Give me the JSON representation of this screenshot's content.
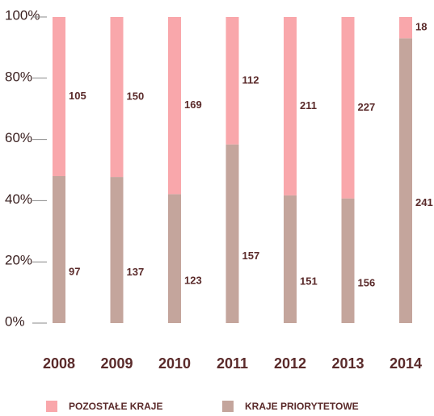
{
  "chart_data": {
    "type": "bar",
    "stacked": "percent",
    "categories": [
      "2008",
      "2009",
      "2010",
      "2011",
      "2012",
      "2013",
      "2014"
    ],
    "series": [
      {
        "name": "POZOSTAŁE KRAJE",
        "color": "#f9a7ab",
        "values": [
          105,
          150,
          169,
          112,
          211,
          227,
          18
        ]
      },
      {
        "name": "KRAJE PRIORYTETOWE",
        "color": "#c4a59c",
        "values": [
          97,
          137,
          123,
          157,
          151,
          156,
          241
        ]
      }
    ],
    "ylim": [
      0,
      100
    ],
    "yticks": [
      {
        "value": 0,
        "label": "0%"
      },
      {
        "value": 20,
        "label": "20%"
      },
      {
        "value": 40,
        "label": "40%"
      },
      {
        "value": 60,
        "label": "60%"
      },
      {
        "value": 80,
        "label": "80%"
      },
      {
        "value": 100,
        "label": "100%"
      }
    ],
    "grid": false,
    "legend": "bottom"
  }
}
